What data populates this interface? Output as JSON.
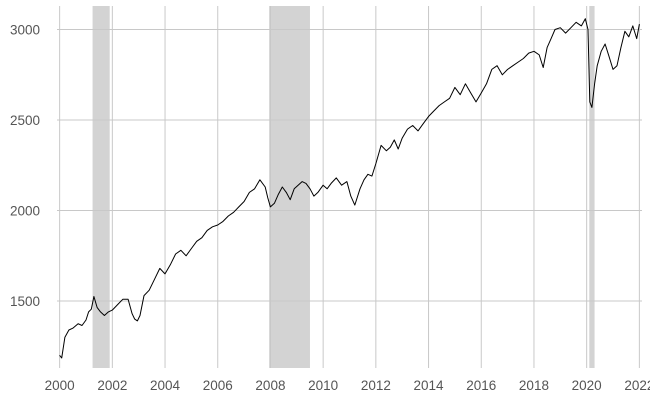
{
  "chart_data": {
    "type": "line",
    "title": "",
    "xlabel": "",
    "ylabel": "",
    "xlim": [
      1999.9,
      2022.1
    ],
    "ylim": [
      1130,
      3130
    ],
    "grid": true,
    "x_ticks": [
      2000,
      2002,
      2004,
      2006,
      2008,
      2010,
      2012,
      2014,
      2016,
      2018,
      2020,
      2022
    ],
    "x_tick_labels": [
      "2000",
      "2002",
      "2004",
      "2006",
      "2008",
      "2010",
      "2012",
      "2014",
      "2016",
      "2018",
      "2020",
      "2022"
    ],
    "y_ticks": [
      1500,
      2000,
      2500,
      3000
    ],
    "y_tick_labels": [
      "1500",
      "2000",
      "2500",
      "3000"
    ],
    "colors": {
      "line": "#000000",
      "shade": "#d3d3d3",
      "grid": "#c8c8c8",
      "tick_text": "#555555"
    },
    "shaded_periods": [
      {
        "start": 2001.25,
        "end": 2001.9
      },
      {
        "start": 2007.95,
        "end": 2009.5
      },
      {
        "start": 2020.1,
        "end": 2020.3
      }
    ],
    "series": [
      {
        "x": [
          2000.0,
          2000.08,
          2000.2,
          2000.35,
          2000.5,
          2000.7,
          2000.85,
          2001.0,
          2001.1,
          2001.2,
          2001.3,
          2001.42,
          2001.55,
          2001.7,
          2001.85,
          2002.0,
          2002.2,
          2002.4,
          2002.6,
          2002.75,
          2002.85,
          2002.95,
          2003.05,
          2003.2,
          2003.4,
          2003.6,
          2003.8,
          2004.0,
          2004.2,
          2004.4,
          2004.6,
          2004.8,
          2005.0,
          2005.2,
          2005.4,
          2005.6,
          2005.8,
          2006.0,
          2006.2,
          2006.4,
          2006.6,
          2006.8,
          2007.0,
          2007.2,
          2007.4,
          2007.6,
          2007.8,
          2007.9,
          2008.0,
          2008.15,
          2008.3,
          2008.45,
          2008.6,
          2008.75,
          2008.9,
          2009.05,
          2009.2,
          2009.35,
          2009.5,
          2009.65,
          2009.8,
          2010.0,
          2010.15,
          2010.3,
          2010.5,
          2010.7,
          2010.9,
          2011.05,
          2011.2,
          2011.4,
          2011.55,
          2011.7,
          2011.85,
          2012.0,
          2012.2,
          2012.4,
          2012.55,
          2012.7,
          2012.85,
          2013.0,
          2013.2,
          2013.4,
          2013.6,
          2013.8,
          2014.0,
          2014.2,
          2014.4,
          2014.6,
          2014.8,
          2015.0,
          2015.2,
          2015.4,
          2015.6,
          2015.8,
          2016.0,
          2016.2,
          2016.4,
          2016.6,
          2016.8,
          2017.0,
          2017.2,
          2017.4,
          2017.6,
          2017.8,
          2018.0,
          2018.2,
          2018.35,
          2018.5,
          2018.65,
          2018.8,
          2019.0,
          2019.2,
          2019.4,
          2019.6,
          2019.8,
          2019.95,
          2020.05,
          2020.12,
          2020.2,
          2020.3,
          2020.4,
          2020.55,
          2020.7,
          2020.85,
          2021.0,
          2021.15,
          2021.3,
          2021.45,
          2021.6,
          2021.75,
          2021.9,
          2022.0
        ],
        "values": [
          1200,
          1185,
          1300,
          1340,
          1350,
          1375,
          1365,
          1395,
          1440,
          1455,
          1525,
          1465,
          1440,
          1420,
          1440,
          1450,
          1480,
          1510,
          1510,
          1430,
          1400,
          1390,
          1420,
          1530,
          1560,
          1620,
          1680,
          1650,
          1700,
          1760,
          1780,
          1750,
          1790,
          1830,
          1850,
          1890,
          1910,
          1920,
          1940,
          1970,
          1990,
          2020,
          2050,
          2100,
          2120,
          2170,
          2130,
          2070,
          2020,
          2040,
          2090,
          2130,
          2100,
          2060,
          2120,
          2140,
          2160,
          2150,
          2120,
          2080,
          2100,
          2140,
          2120,
          2150,
          2180,
          2140,
          2160,
          2080,
          2030,
          2120,
          2170,
          2200,
          2190,
          2260,
          2360,
          2330,
          2350,
          2390,
          2340,
          2400,
          2450,
          2470,
          2440,
          2480,
          2520,
          2550,
          2580,
          2600,
          2620,
          2680,
          2640,
          2700,
          2650,
          2600,
          2650,
          2700,
          2780,
          2800,
          2750,
          2780,
          2800,
          2820,
          2840,
          2870,
          2880,
          2860,
          2790,
          2900,
          2950,
          3000,
          3010,
          2980,
          3010,
          3040,
          3020,
          3060,
          3000,
          2600,
          2570,
          2700,
          2800,
          2880,
          2920,
          2850,
          2780,
          2800,
          2900,
          2990,
          2960,
          3020,
          2950,
          3030
        ]
      }
    ]
  }
}
